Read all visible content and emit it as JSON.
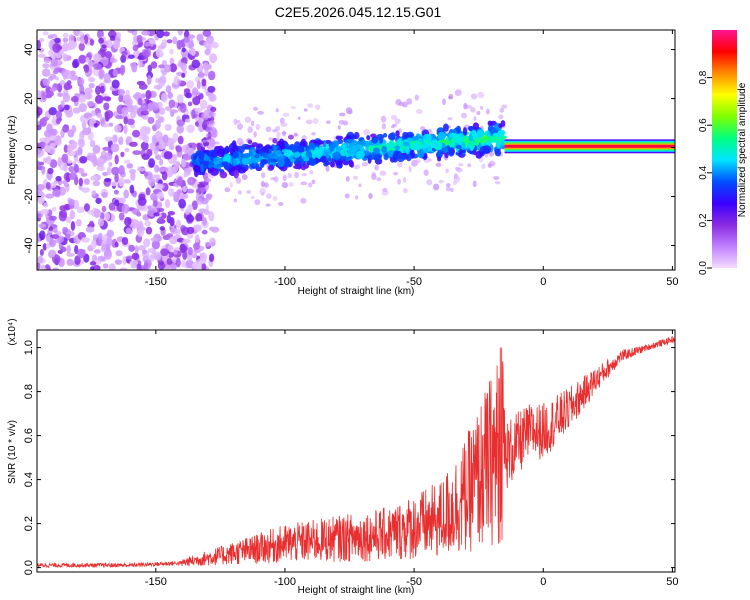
{
  "title": "C2E5.2026.045.12.15.G01",
  "chart_data": [
    {
      "type": "heatmap",
      "xlabel": "Height of straight line (km)",
      "ylabel": "Frequency (Hz)",
      "xlim": [
        -196,
        51
      ],
      "ylim": [
        -50,
        48
      ],
      "xticks": [
        -150,
        -100,
        -50,
        0,
        50
      ],
      "yticks": [
        -40,
        -20,
        0,
        20,
        40
      ],
      "colorbar": {
        "label": "Normalized spectral amplitude",
        "range": [
          0,
          1
        ],
        "ticks": [
          "0.0",
          "0.2",
          "0.4",
          "0.6",
          "0.8"
        ],
        "colors": [
          "#f3dcff",
          "#c080ff",
          "#8a2be2",
          "#3a00ff",
          "#0050ff",
          "#00e5ff",
          "#00ff7f",
          "#7fff00",
          "#ffff00",
          "#ff8c00",
          "#ff0000",
          "#ff1493"
        ]
      },
      "features": [
        {
          "x_range": [
            -196,
            -135
          ],
          "freq_spread": [
            -50,
            48
          ],
          "amplitude": 0.08
        },
        {
          "x_range": [
            -135,
            -15
          ],
          "freq_center": [
            -6,
            4
          ],
          "freq_halfwidth": 8,
          "amplitude": 0.3
        },
        {
          "x_range": [
            -15,
            51
          ],
          "freq_center": 0.5,
          "freq_halfwidth": 1.5,
          "amplitude": 0.9
        }
      ]
    },
    {
      "type": "line",
      "xlabel": "Height of straight line (km)",
      "ylabel": "SNR (10 * v/v)",
      "yscale_label": "(x10⁴)",
      "xlim": [
        -196,
        51
      ],
      "ylim": [
        -0.02,
        1.08
      ],
      "xticks": [
        -150,
        -100,
        -50,
        0,
        50
      ],
      "yticks": [
        "0.0",
        "0.2",
        "0.4",
        "0.6",
        "0.8",
        "1.0"
      ],
      "color": "#e82e2e",
      "series": [
        {
          "x": [
            -196,
            -160,
            -140,
            -120,
            -100,
            -80,
            -60,
            -40,
            -30,
            -20,
            -17,
            -15,
            -10,
            -5,
            0,
            10,
            20,
            30,
            40,
            51
          ],
          "y": [
            0.01,
            0.01,
            0.02,
            0.06,
            0.1,
            0.12,
            0.14,
            0.2,
            0.3,
            0.45,
            0.5,
            0.5,
            0.56,
            0.62,
            0.62,
            0.72,
            0.85,
            0.96,
            1.0,
            1.04
          ]
        }
      ]
    }
  ]
}
